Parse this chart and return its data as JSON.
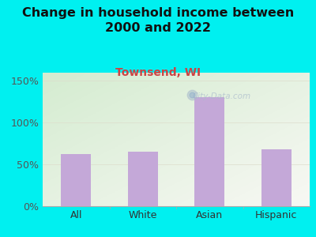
{
  "title": "Change in household income between\n2000 and 2022",
  "subtitle": "Townsend, WI",
  "categories": [
    "All",
    "White",
    "Asian",
    "Hispanic"
  ],
  "values": [
    62,
    65,
    130,
    68
  ],
  "bar_color": "#c4a8d8",
  "background_color": "#00f0f0",
  "plot_bg_gradient_tl": "#d4ecd0",
  "plot_bg_gradient_br": "#f5f5f0",
  "title_fontsize": 11.5,
  "subtitle_fontsize": 10,
  "subtitle_color": "#cc4444",
  "title_color": "#111111",
  "tick_label_color": "#333333",
  "ytick_label_color": "#555555",
  "ylim": [
    0,
    160
  ],
  "yticks": [
    0,
    50,
    100,
    150
  ],
  "ytick_labels": [
    "0%",
    "50%",
    "100%",
    "150%"
  ],
  "watermark_text": "City-Data.com",
  "watermark_color": "#aabbcc"
}
